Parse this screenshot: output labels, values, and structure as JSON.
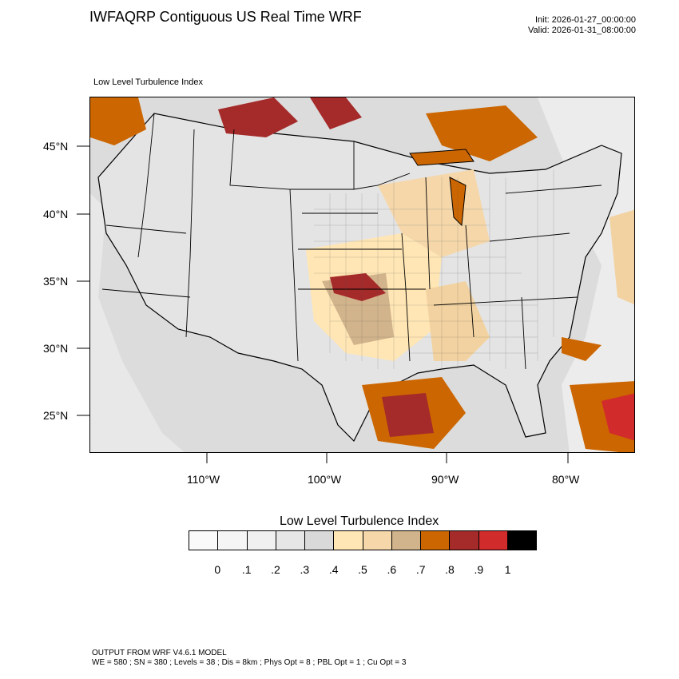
{
  "header": {
    "title": "IWFAQRP Contiguous US Real Time WRF",
    "init": "Init: 2026-01-27_00:00:00",
    "valid": "Valid: 2026-01-31_08:00:00",
    "subtitle": "Low Level Turbulence Index"
  },
  "map": {
    "lat_labels": [
      "45°N",
      "40°N",
      "35°N",
      "30°N",
      "25°N"
    ],
    "lon_labels": [
      "110°W",
      "100°W",
      "90°W",
      "80°W"
    ],
    "colors": {
      "light": "#f0f0f0",
      "grey": "#dcdcdc",
      "tan_light": "#ffe6b3",
      "tan": "#f2d2a0",
      "brown": "#d2b48c",
      "orange": "#cc6600",
      "dark_red": "#a52a2a",
      "red": "#d22b2b",
      "land_line": "#000000"
    }
  },
  "colorbar": {
    "title": "Low Level Turbulence Index",
    "colors": [
      "#fafafa",
      "#f5f5f5",
      "#f0f0f0",
      "#e6e6e6",
      "#d9d9d9",
      "#ffe6b4",
      "#f5d7aa",
      "#d2b48c",
      "#cc6600",
      "#a52a2a",
      "#d22b2b",
      "#000000"
    ],
    "labels": [
      "0",
      ".1",
      ".2",
      ".3",
      ".4",
      ".5",
      ".6",
      ".7",
      ".8",
      ".9",
      "1"
    ]
  },
  "footer": {
    "line1": "OUTPUT FROM WRF V4.6.1 MODEL",
    "line2": "WE = 580 ; SN = 380 ; Levels = 38 ; Dis = 8km ; Phys Opt = 8 ; PBL Opt = 1 ; Cu Opt = 3"
  }
}
